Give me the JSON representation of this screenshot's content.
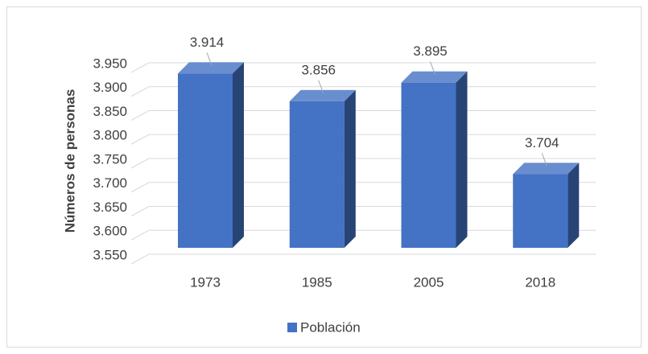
{
  "chart_data": {
    "type": "bar3d",
    "y_label": "Números de personas",
    "categories": [
      "1973",
      "1985",
      "2005",
      "2018"
    ],
    "series": [
      {
        "name": "Población",
        "color": "#4472c4",
        "values": [
          3914,
          3856,
          3895,
          3704
        ],
        "value_labels": [
          "3.914",
          "3.856",
          "3.895",
          "3.704"
        ]
      }
    ],
    "ylim": [
      3550,
      3950
    ],
    "yticks": [
      {
        "value": 3550,
        "label": "3.550"
      },
      {
        "value": 3600,
        "label": "3.600"
      },
      {
        "value": 3650,
        "label": "3.650"
      },
      {
        "value": 3700,
        "label": "3.700"
      },
      {
        "value": 3750,
        "label": "3.750"
      },
      {
        "value": 3800,
        "label": "3.800"
      },
      {
        "value": 3850,
        "label": "3.850"
      },
      {
        "value": 3900,
        "label": "3.900"
      },
      {
        "value": 3950,
        "label": "3.950"
      }
    ],
    "grid": true,
    "legend": "bottom"
  }
}
